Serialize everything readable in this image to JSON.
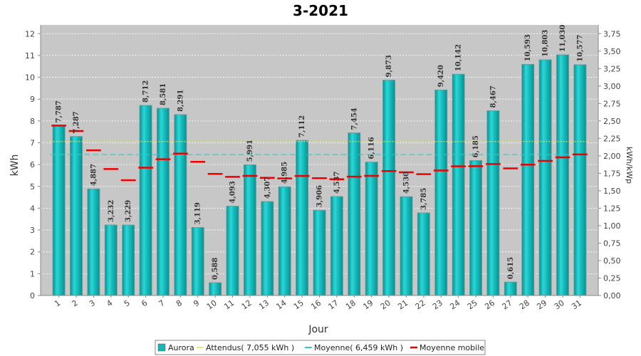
{
  "chart_data": {
    "type": "bar",
    "title": "3-2021",
    "xlabel": "Jour",
    "ylabel": "kWh",
    "y2label": "kWh/kWp",
    "ylim": [
      0,
      12.4
    ],
    "y2lim": [
      0,
      3.875
    ],
    "yticks": [
      0,
      1,
      2,
      3,
      4,
      5,
      6,
      7,
      8,
      9,
      10,
      11,
      12
    ],
    "y2ticks": [
      "0,00",
      "0,25",
      "0,50",
      "0,75",
      "1,00",
      "1,25",
      "1,50",
      "1,75",
      "2,00",
      "2,25",
      "2,50",
      "2,75",
      "3,00",
      "3,25",
      "3,50",
      "3,75"
    ],
    "grid": true,
    "categories": [
      "1",
      "2",
      "3",
      "4",
      "5",
      "6",
      "7",
      "8",
      "9",
      "10",
      "11",
      "12",
      "13",
      "14",
      "15",
      "16",
      "17",
      "18",
      "19",
      "20",
      "21",
      "22",
      "23",
      "24",
      "25",
      "26",
      "27",
      "28",
      "29",
      "30",
      "31"
    ],
    "series": [
      {
        "name": "Aurora",
        "color": "#1bb5b5",
        "values": [
          7.787,
          7.287,
          4.887,
          3.232,
          3.229,
          8.712,
          8.581,
          8.291,
          3.119,
          0.588,
          4.093,
          5.991,
          4.307,
          4.985,
          7.112,
          3.906,
          4.537,
          7.454,
          6.116,
          9.873,
          4.53,
          3.785,
          9.42,
          10.142,
          6.185,
          8.467,
          0.615,
          10.593,
          10.803,
          11.03,
          10.577
        ],
        "labels": [
          "7,787",
          "7,287",
          "4,887",
          "3,232",
          "3,229",
          "8,712",
          "8,581",
          "8,291",
          "3,119",
          "0,588",
          "4,093",
          "5,991",
          "4,307",
          "4,985",
          "7,112",
          "3,906",
          "4,537",
          "7,454",
          "6,116",
          "9,873",
          "4,530",
          "3,785",
          "9,420",
          "10,142",
          "6,185",
          "8,467",
          "0,615",
          "10,593",
          "10,803",
          "11,030",
          "10,577"
        ]
      },
      {
        "name": "Moyenne mobile",
        "color": "#ee0000",
        "values": [
          7.787,
          7.537,
          6.654,
          5.798,
          5.284,
          5.856,
          6.245,
          6.501,
          6.125,
          5.571,
          5.437,
          5.483,
          5.392,
          5.362,
          5.477,
          5.378,
          5.329,
          5.447,
          5.482,
          5.701,
          5.645,
          5.56,
          5.728,
          5.917,
          5.928,
          6.026,
          5.826,
          5.997,
          6.168,
          6.33,
          6.467
        ]
      }
    ],
    "reference_lines": [
      {
        "name": "Attendus",
        "legend": "Attendus( 7,055 kWh )",
        "value": 7.055,
        "color": "#e6e67a",
        "style": "dotted"
      },
      {
        "name": "Moyenne",
        "legend": "Moyenne( 6,459 kWh )",
        "value": 6.459,
        "color": "#33c8c8",
        "style": "dashed"
      }
    ],
    "legend": {
      "placement": "bottom-center",
      "items": [
        {
          "label": "Aurora",
          "color": "#1bb5b5",
          "kind": "box"
        },
        {
          "label": "Attendus( 7,055 kWh )",
          "color": "#e6e67a",
          "kind": "line"
        },
        {
          "label": "Moyenne( 6,459 kWh )",
          "color": "#33c8c8",
          "kind": "line"
        },
        {
          "label": "Moyenne mobile",
          "color": "#ee0000",
          "kind": "line"
        }
      ]
    }
  }
}
